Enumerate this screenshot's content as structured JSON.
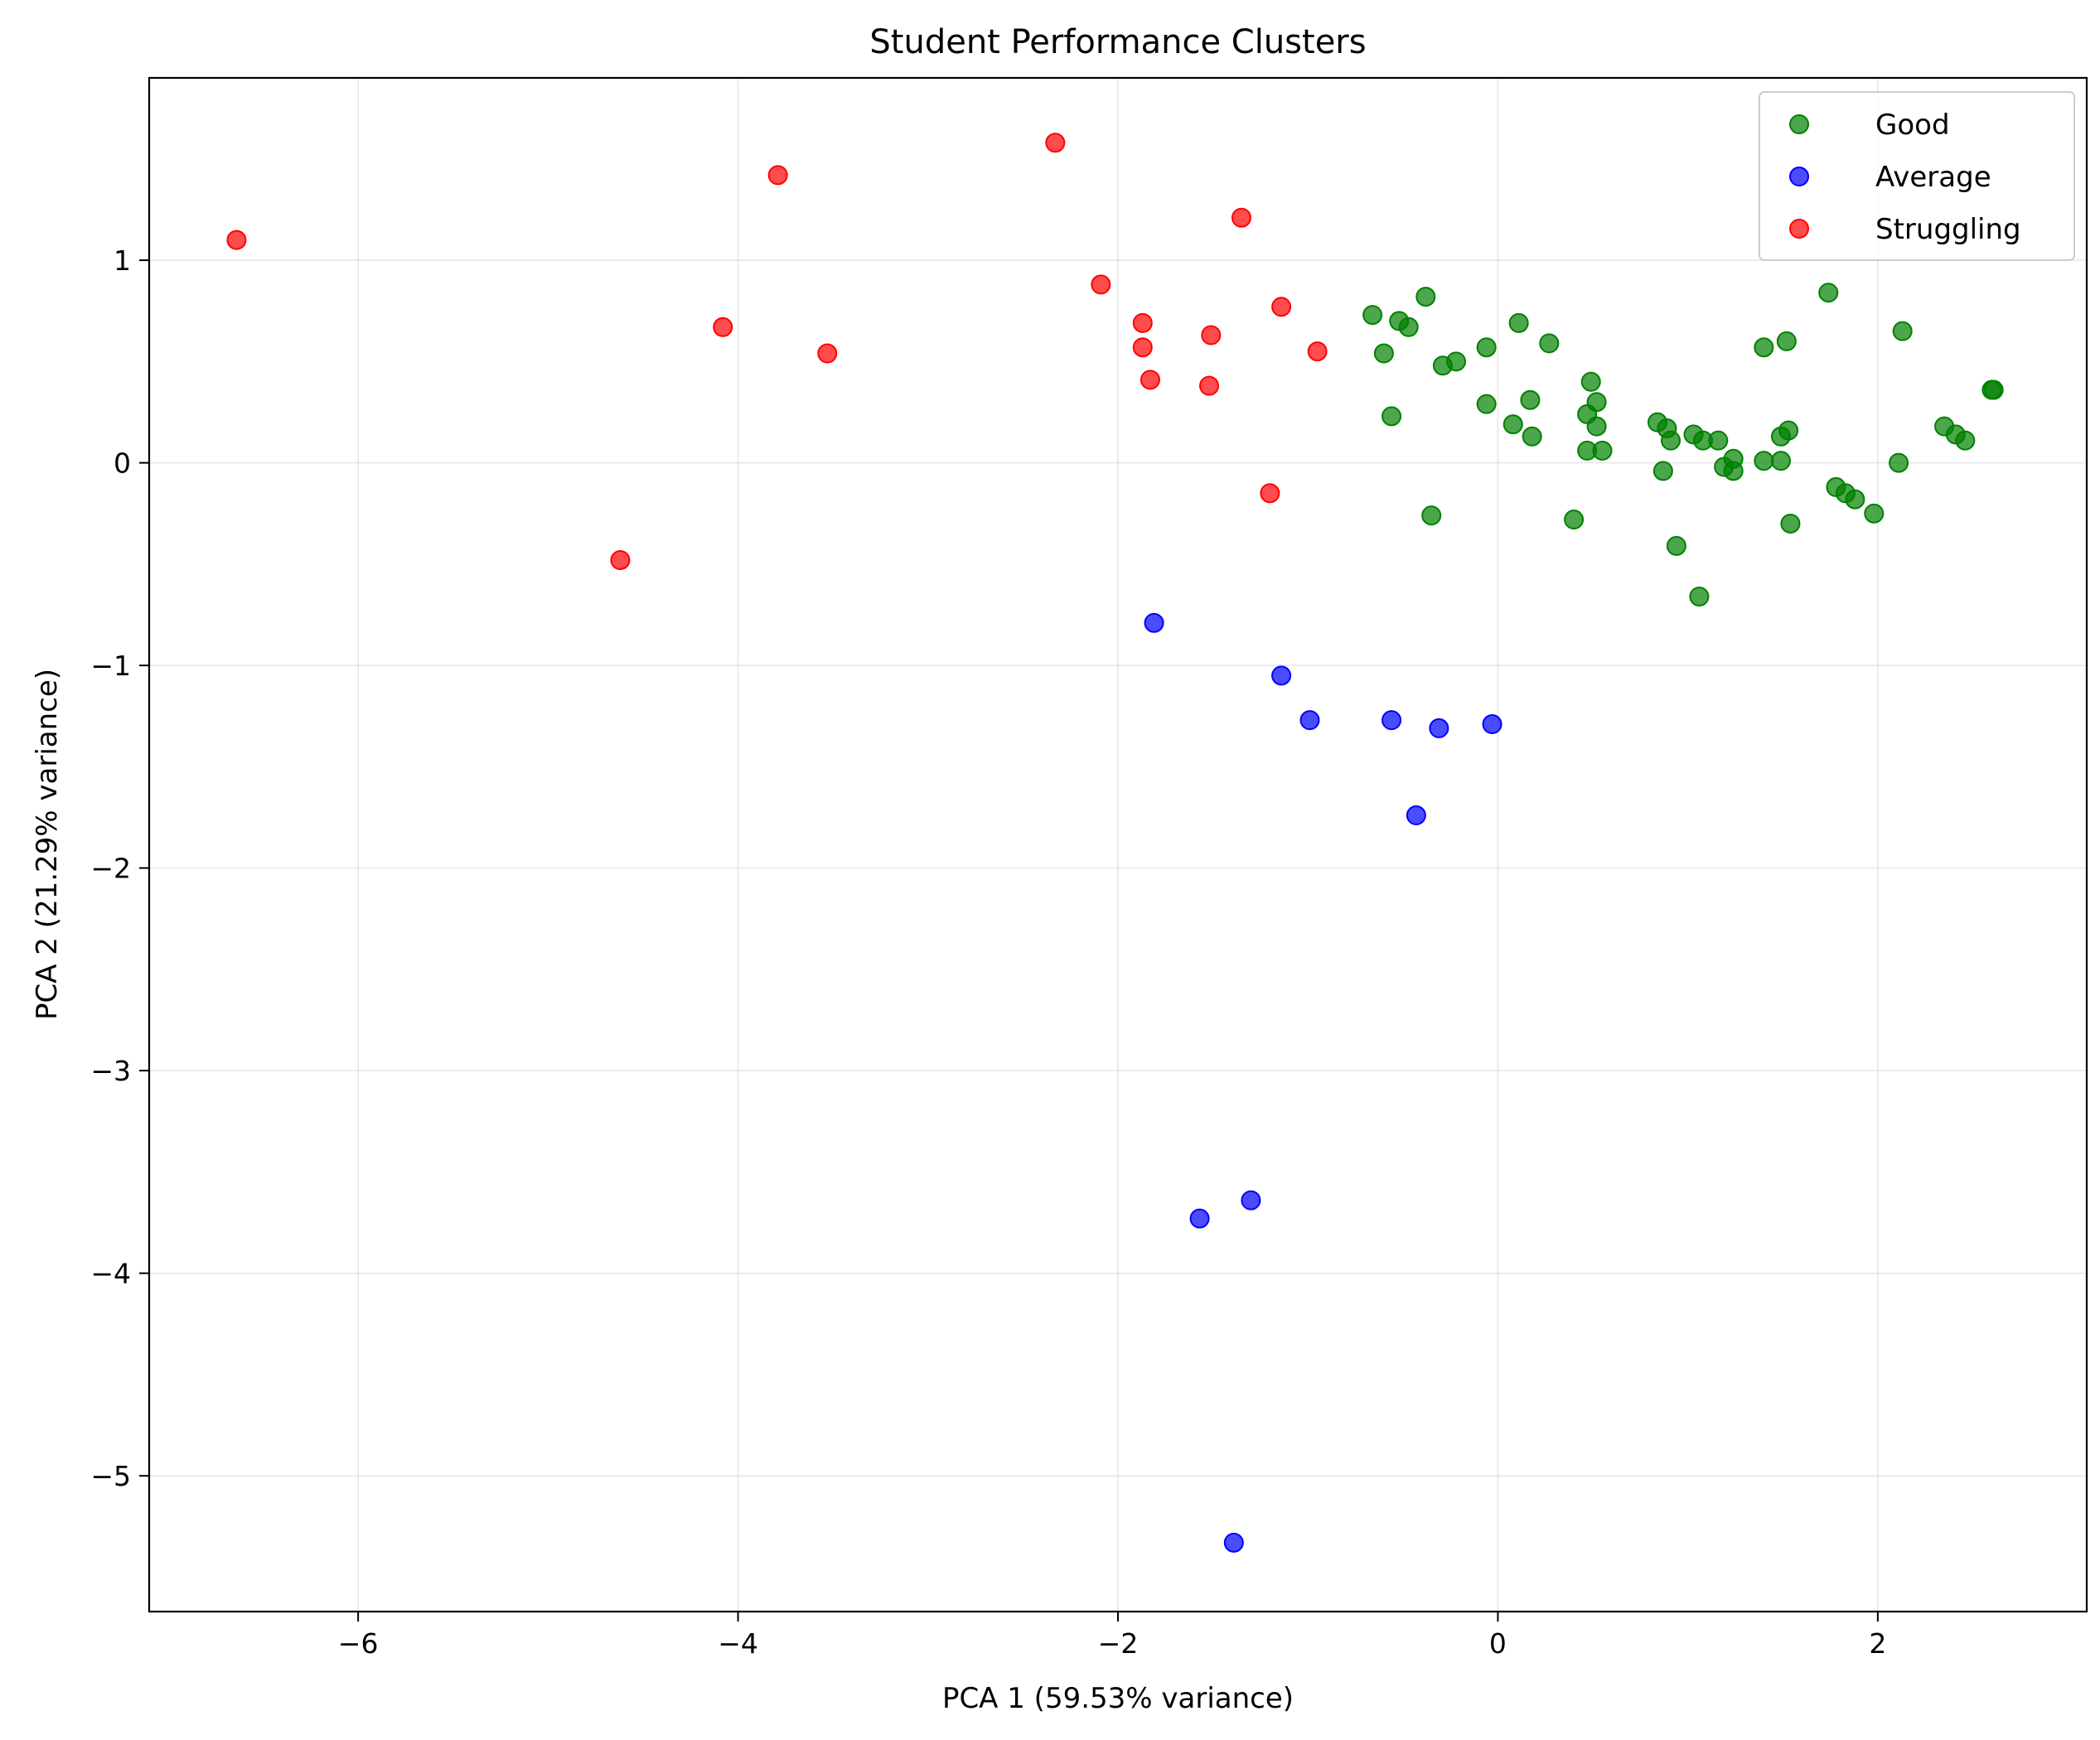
{
  "chart_data": {
    "type": "scatter",
    "title": "Student Performance Clusters",
    "xlabel": "PCA 1 (59.53% variance)",
    "ylabel": "PCA 2 (21.29% variance)",
    "xlim": [
      -7.1,
      3.1
    ],
    "ylim": [
      -5.67,
      1.9
    ],
    "xticks": [
      -6,
      -4,
      -2,
      0,
      2
    ],
    "yticks": [
      -5,
      -4,
      -3,
      -2,
      -1,
      0,
      1
    ],
    "xtick_labels": [
      "−6",
      "−4",
      "−2",
      "0",
      "2"
    ],
    "ytick_labels": [
      "−5",
      "−4",
      "−3",
      "−2",
      "−1",
      "0",
      "1"
    ],
    "grid": true,
    "legend_position": "top-right",
    "series": [
      {
        "name": "Good",
        "color": "#008000",
        "points": [
          [
            -0.66,
            0.73
          ],
          [
            -0.52,
            0.7
          ],
          [
            -0.47,
            0.67
          ],
          [
            -0.38,
            0.82
          ],
          [
            -0.6,
            0.54
          ],
          [
            -0.29,
            0.48
          ],
          [
            -0.22,
            0.5
          ],
          [
            -0.06,
            0.57
          ],
          [
            0.11,
            0.69
          ],
          [
            0.27,
            0.59
          ],
          [
            -0.56,
            0.23
          ],
          [
            -0.06,
            0.29
          ],
          [
            0.08,
            0.19
          ],
          [
            0.17,
            0.31
          ],
          [
            0.18,
            0.13
          ],
          [
            0.47,
            0.24
          ],
          [
            0.49,
            0.4
          ],
          [
            0.52,
            0.3
          ],
          [
            0.52,
            0.18
          ],
          [
            0.47,
            0.06
          ],
          [
            0.55,
            0.06
          ],
          [
            -0.35,
            -0.26
          ],
          [
            0.4,
            -0.28
          ],
          [
            0.84,
            0.2
          ],
          [
            0.89,
            0.17
          ],
          [
            0.91,
            0.11
          ],
          [
            1.03,
            0.14
          ],
          [
            1.08,
            0.11
          ],
          [
            1.16,
            0.11
          ],
          [
            1.24,
            0.02
          ],
          [
            1.19,
            -0.02
          ],
          [
            1.24,
            -0.04
          ],
          [
            0.87,
            -0.04
          ],
          [
            0.94,
            -0.41
          ],
          [
            1.06,
            -0.66
          ],
          [
            1.4,
            0.57
          ],
          [
            1.52,
            0.6
          ],
          [
            1.4,
            0.01
          ],
          [
            1.49,
            0.01
          ],
          [
            1.49,
            0.13
          ],
          [
            1.53,
            0.16
          ],
          [
            1.54,
            -0.3
          ],
          [
            1.74,
            0.84
          ],
          [
            1.78,
            -0.12
          ],
          [
            1.83,
            -0.15
          ],
          [
            1.88,
            -0.18
          ],
          [
            1.98,
            -0.25
          ],
          [
            2.13,
            0.65
          ],
          [
            2.11,
            0.0
          ],
          [
            2.35,
            0.18
          ],
          [
            2.41,
            0.14
          ],
          [
            2.46,
            0.11
          ],
          [
            2.6,
            0.36
          ],
          [
            2.61,
            0.36
          ]
        ]
      },
      {
        "name": "Average",
        "color": "#0000ff",
        "points": [
          [
            -1.81,
            -0.79
          ],
          [
            -1.14,
            -1.05
          ],
          [
            -0.99,
            -1.27
          ],
          [
            -0.56,
            -1.27
          ],
          [
            -0.31,
            -1.31
          ],
          [
            -0.03,
            -1.29
          ],
          [
            -0.43,
            -1.74
          ],
          [
            -1.57,
            -3.73
          ],
          [
            -1.3,
            -3.64
          ],
          [
            -1.39,
            -5.33
          ]
        ]
      },
      {
        "name": "Struggling",
        "color": "#ff0000",
        "points": [
          [
            -6.64,
            1.1
          ],
          [
            -3.79,
            1.42
          ],
          [
            -2.33,
            1.58
          ],
          [
            -1.35,
            1.21
          ],
          [
            -4.08,
            0.67
          ],
          [
            -3.53,
            0.54
          ],
          [
            -2.09,
            0.88
          ],
          [
            -1.87,
            0.69
          ],
          [
            -1.87,
            0.57
          ],
          [
            -1.51,
            0.63
          ],
          [
            -1.14,
            0.77
          ],
          [
            -0.95,
            0.55
          ],
          [
            -1.83,
            0.41
          ],
          [
            -1.52,
            0.38
          ],
          [
            -4.62,
            -0.48
          ],
          [
            -1.2,
            -0.15
          ]
        ]
      }
    ]
  }
}
